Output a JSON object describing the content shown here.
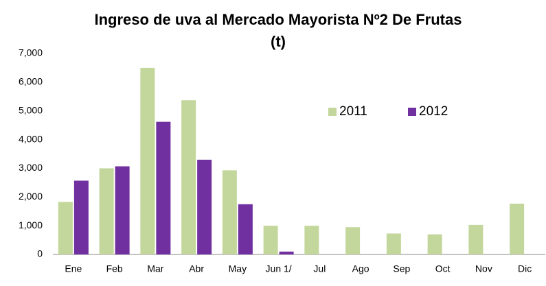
{
  "chart_data": {
    "type": "bar",
    "title": "Ingreso de uva al Mercado Mayorista Nº2 De Frutas",
    "subtitle": "(t)",
    "categories": [
      "Ene",
      "Feb",
      "Mar",
      "Abr",
      "May",
      "Jun 1/",
      "Jul",
      "Ago",
      "Sep",
      "Oct",
      "Nov",
      "Dic"
    ],
    "series": [
      {
        "name": "2011",
        "color": "#c3d69b",
        "values": [
          1830,
          3000,
          6500,
          5370,
          2930,
          1000,
          1000,
          950,
          730,
          700,
          1030,
          1770
        ]
      },
      {
        "name": "2012",
        "color": "#7030a0",
        "values": [
          2570,
          3070,
          4620,
          3300,
          1750,
          100,
          null,
          null,
          null,
          null,
          null,
          null
        ]
      }
    ],
    "ylim": [
      0,
      7000
    ],
    "yticks": [
      0,
      {
        "value": 1000,
        "label": "1,000"
      },
      {
        "value": 2000,
        "label": "2,000"
      },
      {
        "value": 3000,
        "label": "3,000"
      },
      {
        "value": 4000,
        "label": "4,000"
      },
      {
        "value": 5000,
        "label": "5,000"
      },
      {
        "value": 6000,
        "label": "6,000"
      },
      {
        "value": 7000,
        "label": "7,000"
      }
    ],
    "grid": false,
    "legend": "inside-top-right"
  }
}
